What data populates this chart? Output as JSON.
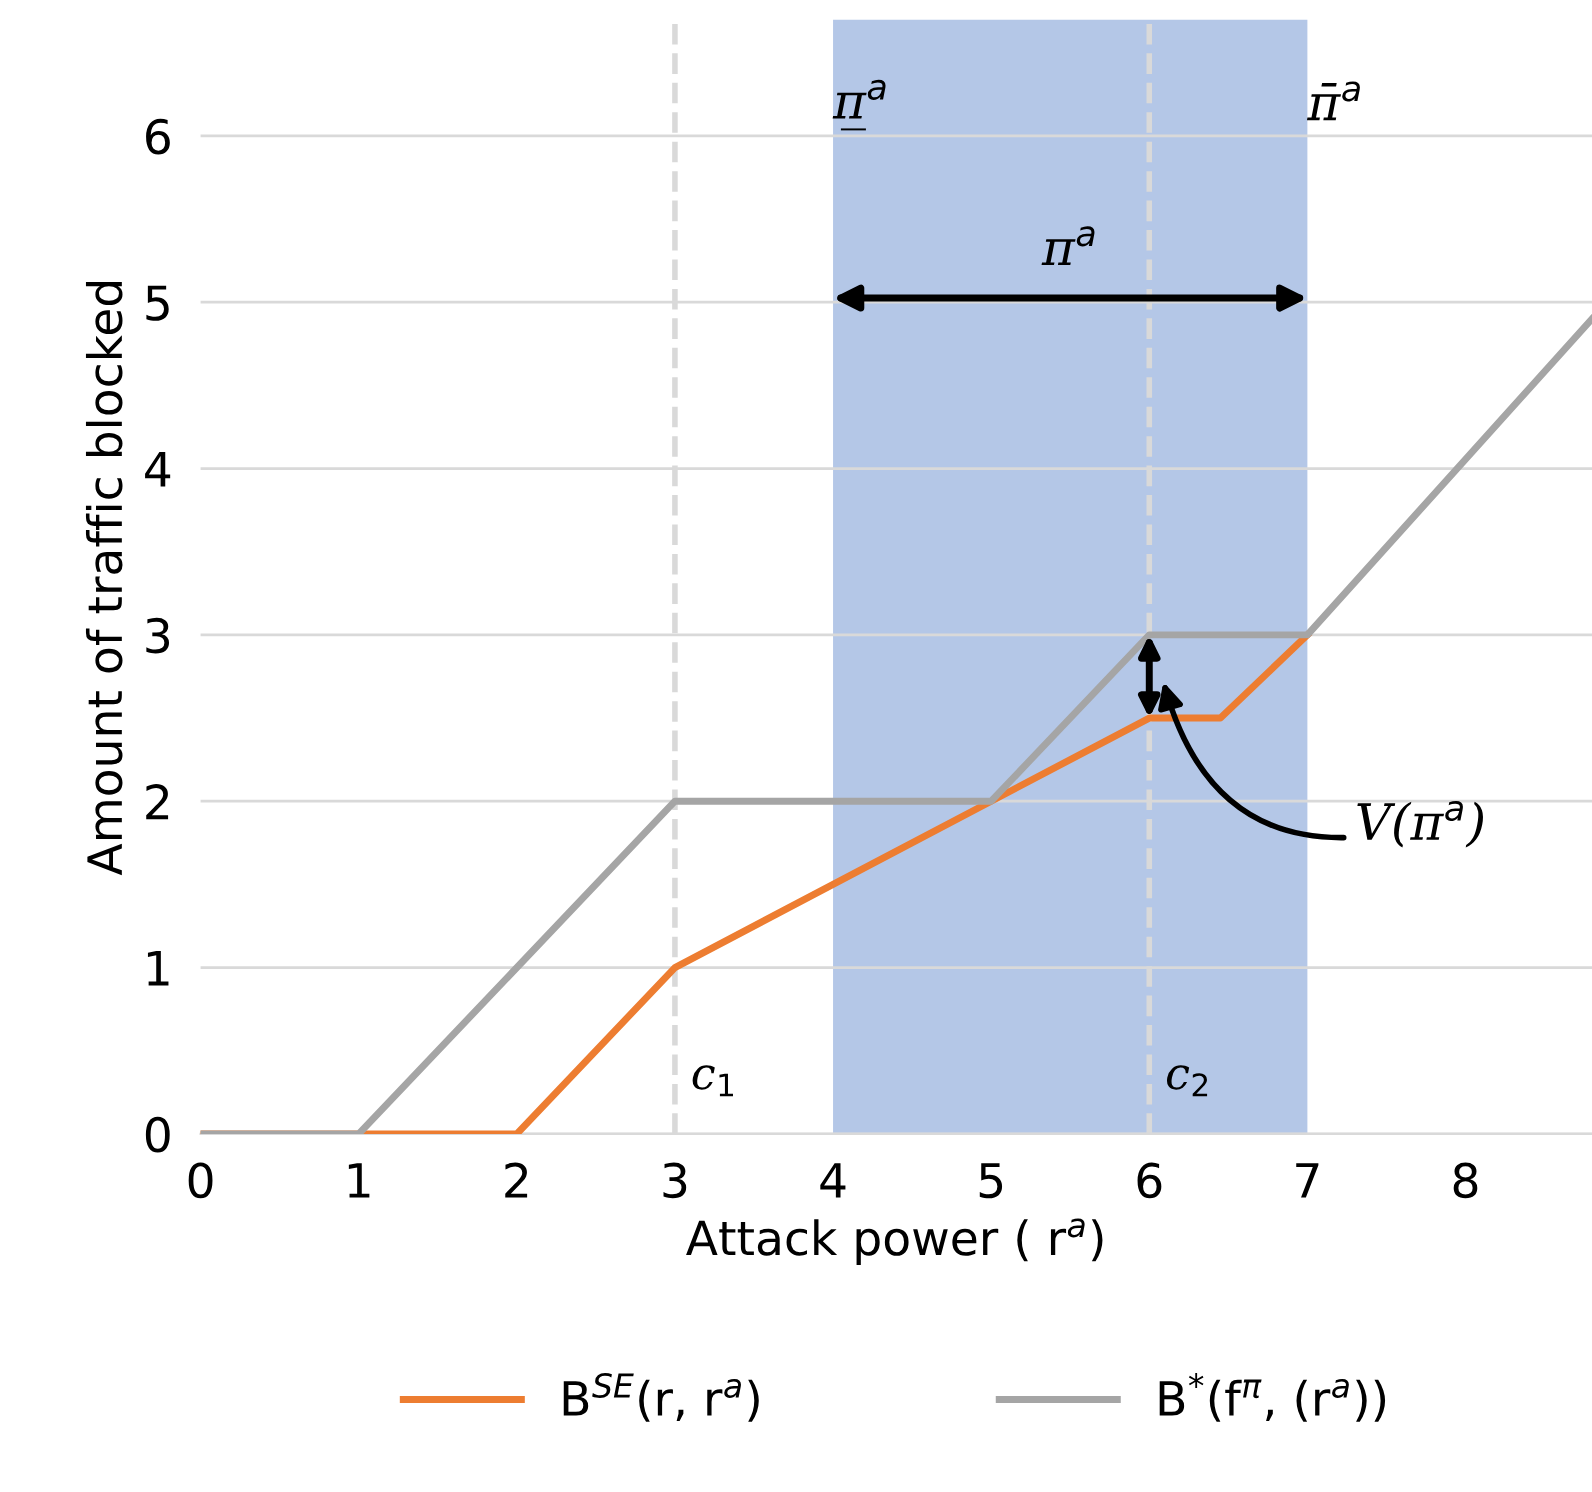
{
  "chart_data": {
    "type": "line",
    "xlabel": "Attack power ( r$^{a}$)",
    "ylabel": "Amount of traffic blocked",
    "xlim": [
      0,
      8.8
    ],
    "ylim": [
      0,
      6.7
    ],
    "xticks": [
      0,
      1,
      2,
      3,
      4,
      5,
      6,
      7,
      8
    ],
    "yticks": [
      0,
      1,
      2,
      3,
      4,
      5,
      6
    ],
    "grid": "y",
    "legend": "bottom",
    "marker": "none",
    "line_style": "solid",
    "series": [
      {
        "name": "B$^{SE}$(r, r$^{a}$)",
        "color": "#ed7d31",
        "x": [
          0,
          2,
          3,
          5,
          6,
          6.45,
          7
        ],
        "values": [
          0,
          0,
          1,
          2,
          2.5,
          2.5,
          3
        ]
      },
      {
        "name": "B$^{*}$(f$^{π}$, (r$^{a}$))",
        "color": "#a5a5a5",
        "x": [
          0,
          1,
          3,
          5,
          6,
          7,
          8.8
        ],
        "values": [
          0,
          0,
          2,
          2,
          3,
          3,
          4.9
        ]
      }
    ],
    "bands": [
      {
        "axis": "x",
        "from": 4,
        "to": 7,
        "color": "#b4c7e7",
        "label": "π$^{a}$"
      }
    ],
    "ref_lines": [
      {
        "axis": "x",
        "value": 3,
        "label": "c$_{1}$",
        "color": "#d9d9d9",
        "line_style": "dashed"
      },
      {
        "axis": "x",
        "value": 6,
        "label": "c$_{2}$",
        "color": "#d9d9d9",
        "line_style": "dashed"
      }
    ],
    "annotations": [
      "π̲$^{a}$",
      "π̄$^{a}$",
      "V(π$^{a}$)"
    ]
  }
}
